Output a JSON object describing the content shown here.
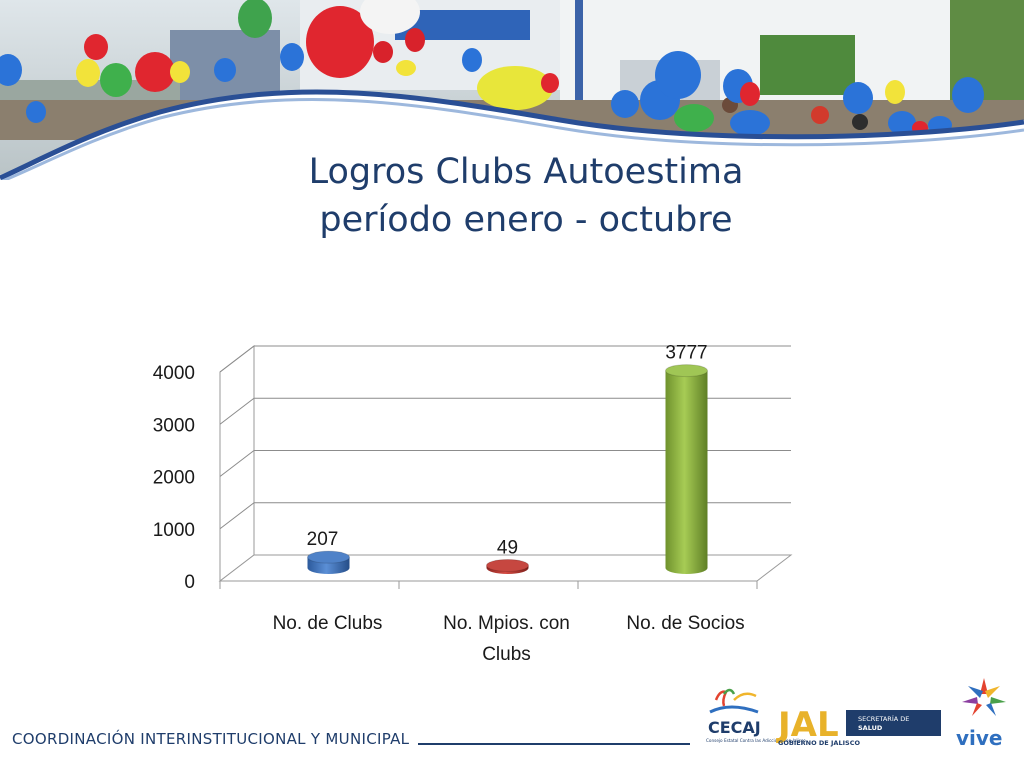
{
  "slide": {
    "title_line1": "Logros Clubs Autoestima",
    "title_line2": "período enero - octubre",
    "footer": "COORDINACIÓN INTERINSTITUCIONAL Y MUNICIPAL"
  },
  "logos": {
    "cecaj_name": "CECAJ",
    "cecaj_sub": "Consejo Estatal Contra las Adicciones en Jalisco",
    "jal_name": "JAL",
    "jal_sub": "GOBIERNO DE JALISCO",
    "salud_line1": "SECRETARÍA DE",
    "salud_line2": "SALUD",
    "vive_name": "vive"
  },
  "colors": {
    "title": "#1f3d6b",
    "bar_clubs": "#3f70b5",
    "bar_mpios": "#b8352f",
    "bar_socios": "#8db33f"
  },
  "chart_data": {
    "type": "bar",
    "categories": [
      "No. de Clubs",
      "No. Mpios. con Clubs",
      "No. de Socios"
    ],
    "values": [
      207,
      49,
      3777
    ],
    "data_labels": [
      "207",
      "49",
      "3777"
    ],
    "y_ticks": [
      "0",
      "1000",
      "2000",
      "3000",
      "4000"
    ],
    "ylim": [
      0,
      4000
    ],
    "grid": true,
    "legend": "none",
    "style": "3d-cylinder"
  }
}
